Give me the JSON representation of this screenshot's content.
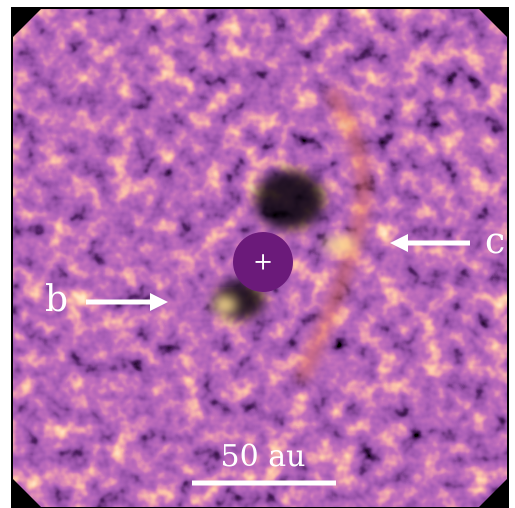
{
  "labels": {
    "planet_b": "b",
    "planet_c": "c",
    "scale_bar": "50 au",
    "star_marker": "+"
  }
}
